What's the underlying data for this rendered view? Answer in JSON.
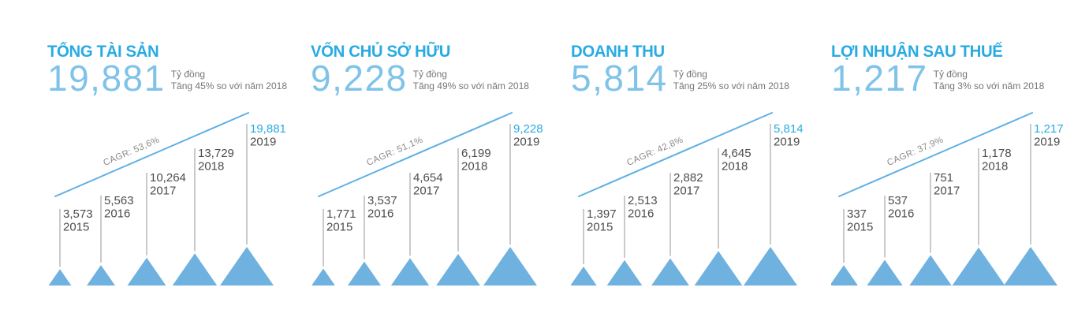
{
  "page": {
    "background": "#FFFFFF",
    "language": "vi"
  },
  "colors": {
    "title_blue": "#29ABE2",
    "headline_blue": "#7FC3E9",
    "accent_blue": "#29ABE2",
    "line_blue": "#5FB0E4",
    "triangle_blue": "#6FB1DF",
    "label_dark": "#4D4D4D",
    "text_gray": "#757575",
    "cagr_gray": "#8A8A8A",
    "stem_gray": "#B3B3B3"
  },
  "chart_data": [
    {
      "type": "bar",
      "title": "TỔNG TÀI SẢN",
      "headline_value": "19,881",
      "unit": "Tỷ đồng",
      "growth_note": "Tăng 45% so với năm 2018",
      "cagr_label": "CAGR: 53,6%",
      "categories": [
        "2015",
        "2016",
        "2017",
        "2018",
        "2019"
      ],
      "values": [
        3573,
        5563,
        10264,
        13729,
        19881
      ],
      "value_labels": [
        "3,573",
        "5,563",
        "10,264",
        "13,729",
        "19,881"
      ],
      "highlight_category": "2019",
      "legend": "none",
      "grid": false
    },
    {
      "type": "bar",
      "title": "VỐN CHỦ SỞ HỮU",
      "headline_value": "9,228",
      "unit": "Tỷ đồng",
      "growth_note": "Tăng 49% so với năm 2018",
      "cagr_label": "CAGR: 51,1%",
      "categories": [
        "2015",
        "2016",
        "2017",
        "2018",
        "2019"
      ],
      "values": [
        1771,
        3537,
        4654,
        6199,
        9228
      ],
      "value_labels": [
        "1,771",
        "3,537",
        "4,654",
        "6,199",
        "9,228"
      ],
      "highlight_category": "2019",
      "legend": "none",
      "grid": false
    },
    {
      "type": "bar",
      "title": "DOANH THU",
      "headline_value": "5,814",
      "unit": "Tỷ đồng",
      "growth_note": "Tăng 25% so với năm 2018",
      "cagr_label": "CAGR: 42,8%",
      "categories": [
        "2015",
        "2016",
        "2017",
        "2018",
        "2019"
      ],
      "values": [
        1397,
        2513,
        2882,
        4645,
        5814
      ],
      "value_labels": [
        "1,397",
        "2,513",
        "2,882",
        "4,645",
        "5,814"
      ],
      "highlight_category": "2019",
      "legend": "none",
      "grid": false
    },
    {
      "type": "bar",
      "title": "LỢI NHUẬN SAU THUẾ",
      "headline_value": "1,217",
      "unit": "Tỷ đồng",
      "growth_note": "Tăng 3% so với năm 2018",
      "cagr_label": "CAGR: 37,9%",
      "categories": [
        "2015",
        "2016",
        "2017",
        "2018",
        "2019"
      ],
      "values": [
        337,
        537,
        751,
        1178,
        1217
      ],
      "value_labels": [
        "337",
        "537",
        "751",
        "1,178",
        "1,217"
      ],
      "highlight_category": "2019",
      "legend": "none",
      "grid": false
    }
  ]
}
